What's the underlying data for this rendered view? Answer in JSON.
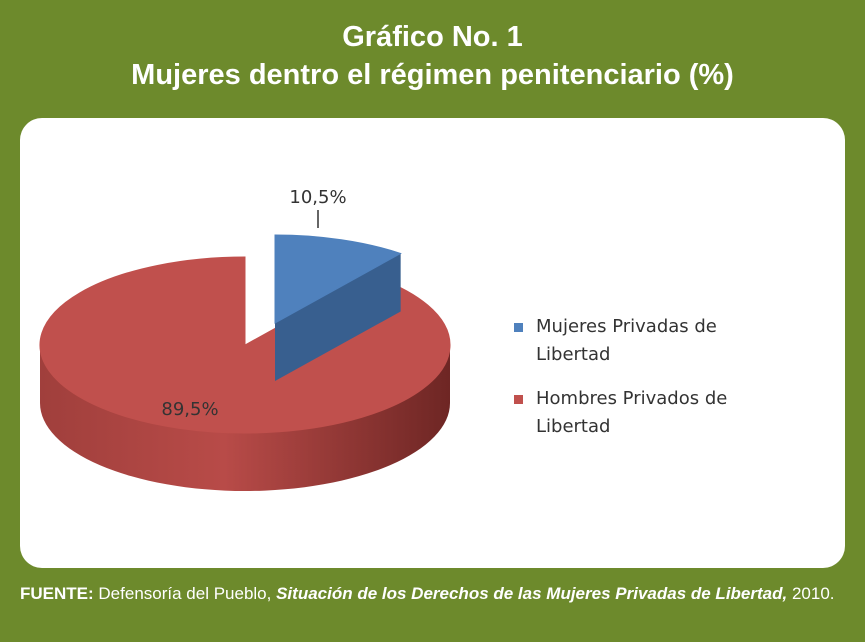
{
  "chart_data": {
    "type": "pie",
    "title": "Gráfico No. 1",
    "subtitle": "Mujeres dentro el régimen penitenciario (%)",
    "categories": [
      "Mujeres Privadas de Libertad",
      "Hombres Privados de Libertad"
    ],
    "values": [
      10.5,
      89.5
    ],
    "value_labels": [
      "10,5%",
      "89,5%"
    ],
    "colors": [
      "#4f81bd",
      "#c0504d"
    ],
    "legend": "right",
    "source": {
      "label": "FUENTE:",
      "text": "Defensoría del Pueblo,",
      "work": "Situación de los Derechos de las Mujeres Privadas de Libertad,",
      "year": "2010."
    }
  }
}
